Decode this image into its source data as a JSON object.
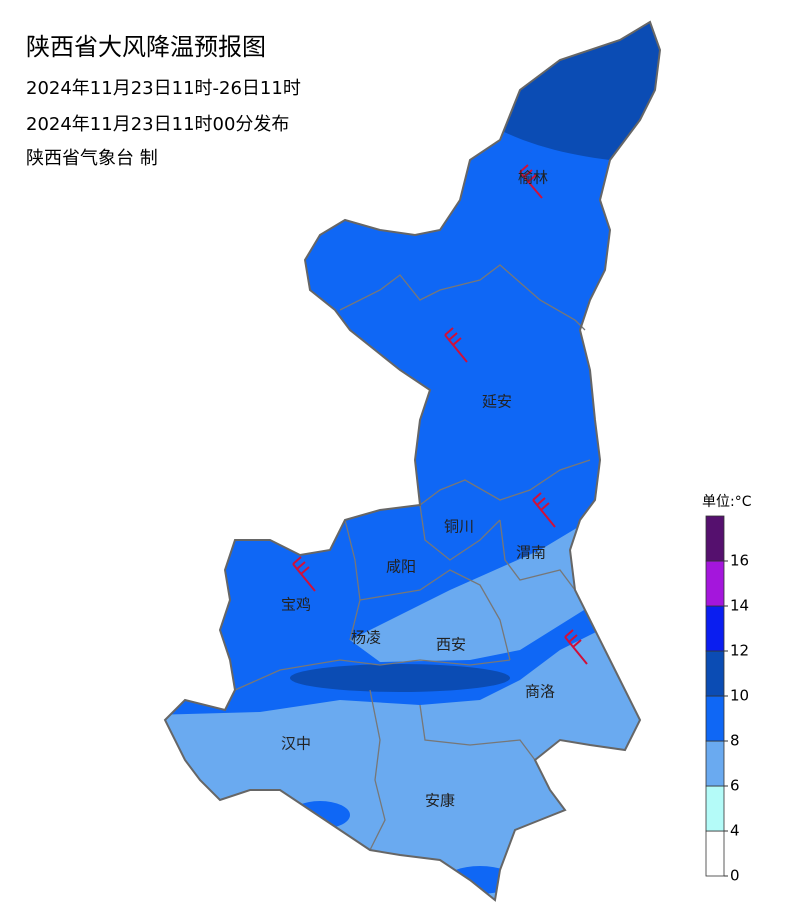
{
  "header": {
    "title": "陕西省大风降温预报图",
    "period": "2024年11月23日11时-26日11时",
    "issued": "2024年11月23日11时00分发布",
    "issuer": "陕西省气象台 制"
  },
  "cities": [
    "榆林",
    "延安",
    "铜川",
    "渭南",
    "咸阳",
    "宝鸡",
    "杨凌",
    "西安",
    "商洛",
    "汉中",
    "安康"
  ],
  "legend": {
    "title": "单位:°C",
    "ticks": [
      0,
      4,
      6,
      8,
      10,
      12,
      14,
      16
    ],
    "colors": [
      "#ffffff",
      "#b4fbf8",
      "#6aaaf0",
      "#0f67f5",
      "#0b4cb4",
      "#0a1ef0",
      "#a416dc",
      "#55106e"
    ]
  }
}
